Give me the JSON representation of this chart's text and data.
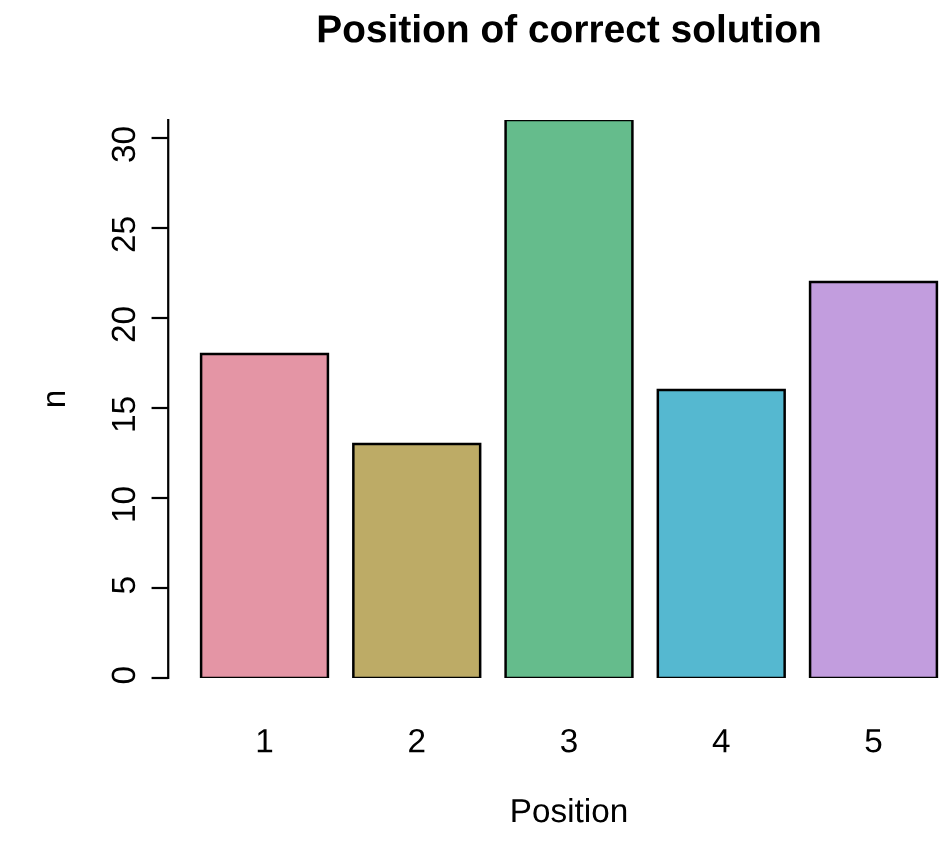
{
  "chart_data": {
    "type": "bar",
    "title": "Position of correct solution",
    "xlabel": "Position",
    "ylabel": "n",
    "categories": [
      "1",
      "2",
      "3",
      "4",
      "5"
    ],
    "values": [
      18,
      13,
      31,
      16,
      22
    ],
    "colors": [
      "#e495a5",
      "#bdab66",
      "#65bc8c",
      "#55b8d0",
      "#c29dde"
    ],
    "ylim": [
      0,
      31
    ],
    "yticks": [
      0,
      5,
      10,
      15,
      20,
      25,
      30
    ],
    "grid": false,
    "legend": false
  }
}
